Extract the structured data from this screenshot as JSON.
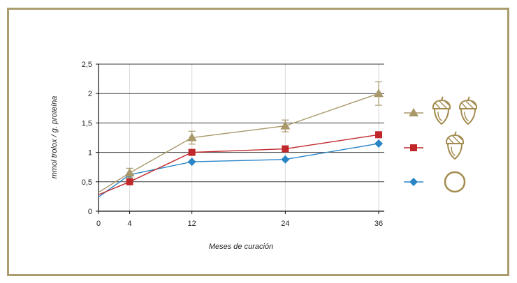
{
  "chart_data": {
    "type": "line",
    "xlabel": "Meses de curación",
    "ylabel": "mmol trolox / g. proteína",
    "xlim": [
      0,
      36
    ],
    "ylim": [
      0,
      2.5
    ],
    "x_ticks": [
      0,
      4,
      12,
      24,
      36
    ],
    "x_tick_labels": [
      "0",
      "4",
      "12",
      "24",
      "36"
    ],
    "y_ticks": [
      0,
      0.5,
      1,
      1.5,
      2,
      2.5
    ],
    "y_tick_labels": [
      "0",
      "0,5",
      "1",
      "1,5",
      "2",
      "2,5"
    ],
    "grid": {
      "horizontal": true,
      "vertical": true
    },
    "legend": {
      "position": "right"
    },
    "series": [
      {
        "marker": "triangle",
        "color": "#a8986a",
        "x": [
          0,
          4,
          12,
          24,
          36
        ],
        "y": [
          0.32,
          0.65,
          1.25,
          1.45,
          2.0
        ],
        "marker_shown": [
          false,
          true,
          true,
          true,
          true
        ],
        "error": [
          0,
          0.08,
          0.11,
          0.1,
          0.2
        ],
        "legend_icons": [
          "acorn-icon",
          "acorn-icon"
        ]
      },
      {
        "marker": "square",
        "color": "#c0272b",
        "x": [
          0,
          4,
          12,
          24,
          36
        ],
        "y": [
          0.28,
          0.5,
          1.0,
          1.06,
          1.3
        ],
        "marker_shown": [
          false,
          true,
          true,
          true,
          true
        ],
        "legend_icons": [
          "acorn-icon"
        ]
      },
      {
        "marker": "diamond",
        "color": "#2a85c7",
        "x": [
          0,
          4,
          12,
          24,
          36
        ],
        "y": [
          0.24,
          0.62,
          0.84,
          0.88,
          1.15
        ],
        "marker_shown": [
          false,
          true,
          true,
          true,
          true
        ],
        "legend_icons": [
          "empty-circle-icon"
        ]
      }
    ]
  },
  "colors": {
    "frame": "#aa9c6c",
    "icon": "#a38b4e",
    "grid_horizontal": "#3a3a3a",
    "grid_vertical": "#d9d9d9",
    "axis": "#111111"
  }
}
